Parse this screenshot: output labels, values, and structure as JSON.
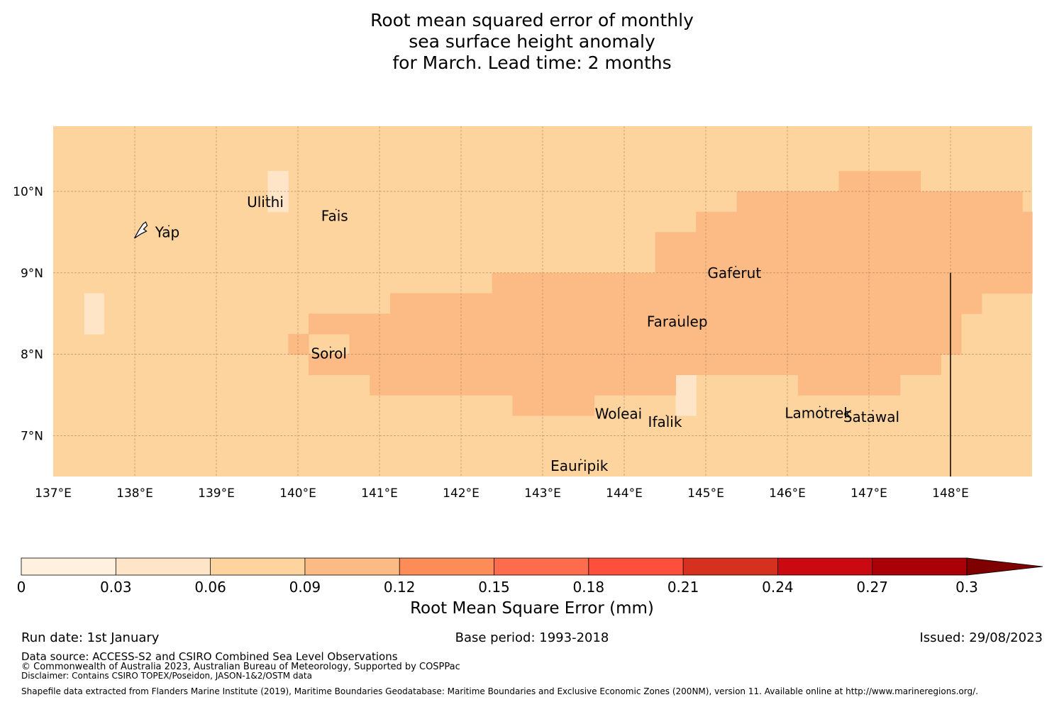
{
  "title": {
    "line1": "Root mean squared error of monthly",
    "line2": "sea surface height anomaly",
    "line3": "for March. Lead time: 2 months"
  },
  "map": {
    "lon_range": [
      137.0,
      149.0
    ],
    "lat_range": [
      6.5,
      10.8
    ],
    "x_ticks": [
      "137°E",
      "138°E",
      "139°E",
      "140°E",
      "141°E",
      "142°E",
      "143°E",
      "144°E",
      "145°E",
      "146°E",
      "147°E",
      "148°E"
    ],
    "y_ticks": [
      "10°N",
      "9°N",
      "8°N",
      "7°N"
    ],
    "background_value": 0.075,
    "error_field": [
      {
        "lon0": 137.38,
        "lon1": 137.62,
        "lat0": 8.25,
        "lat1": 8.75,
        "value": 0.05
      },
      {
        "lon0": 139.63,
        "lon1": 139.88,
        "lat0": 9.75,
        "lat1": 10.25,
        "value": 0.05
      },
      {
        "lon0": 144.63,
        "lon1": 144.88,
        "lat0": 7.25,
        "lat1": 7.75,
        "value": 0.05
      },
      {
        "lon0": 142.38,
        "lon1": 144.38,
        "lat0": 8.75,
        "lat1": 9.0,
        "value": 0.095
      },
      {
        "lon0": 144.38,
        "lon1": 144.88,
        "lat0": 8.75,
        "lat1": 9.5,
        "value": 0.095
      },
      {
        "lon0": 144.88,
        "lon1": 145.38,
        "lat0": 8.75,
        "lat1": 9.75,
        "value": 0.095
      },
      {
        "lon0": 145.38,
        "lon1": 146.63,
        "lat0": 8.75,
        "lat1": 10.0,
        "value": 0.095
      },
      {
        "lon0": 146.63,
        "lon1": 147.63,
        "lat0": 8.75,
        "lat1": 10.25,
        "value": 0.095
      },
      {
        "lon0": 147.63,
        "lon1": 148.88,
        "lat0": 8.75,
        "lat1": 10.0,
        "value": 0.095
      },
      {
        "lon0": 148.88,
        "lon1": 149.0,
        "lat0": 8.75,
        "lat1": 9.75,
        "value": 0.095
      },
      {
        "lon0": 141.13,
        "lon1": 148.38,
        "lat0": 8.5,
        "lat1": 8.75,
        "value": 0.095
      },
      {
        "lon0": 140.63,
        "lon1": 148.13,
        "lat0": 8.0,
        "lat1": 8.5,
        "value": 0.095
      },
      {
        "lon0": 140.13,
        "lon1": 147.88,
        "lat0": 7.75,
        "lat1": 8.0,
        "value": 0.095
      },
      {
        "lon0": 140.13,
        "lon1": 140.63,
        "lat0": 8.25,
        "lat1": 8.5,
        "value": 0.095
      },
      {
        "lon0": 139.88,
        "lon1": 140.13,
        "lat0": 8.0,
        "lat1": 8.25,
        "value": 0.095
      },
      {
        "lon0": 140.88,
        "lon1": 142.63,
        "lat0": 7.5,
        "lat1": 7.75,
        "value": 0.095
      },
      {
        "lon0": 142.63,
        "lon1": 143.63,
        "lat0": 7.25,
        "lat1": 7.75,
        "value": 0.095
      },
      {
        "lon0": 143.63,
        "lon1": 144.63,
        "lat0": 7.5,
        "lat1": 7.75,
        "value": 0.095
      },
      {
        "lon0": 146.13,
        "lon1": 147.38,
        "lat0": 7.5,
        "lat1": 7.75,
        "value": 0.095
      }
    ],
    "boundary_line": {
      "lon": 148.0,
      "lat0": 6.5,
      "lat1": 9.0
    },
    "places": [
      {
        "name": "Yap",
        "lon": 138.4,
        "lat": 9.5
      },
      {
        "name": "Ulithi",
        "lon": 139.6,
        "lat": 9.87
      },
      {
        "name": "Fais",
        "lon": 140.45,
        "lat": 9.7
      },
      {
        "name": "Gaferut",
        "lon": 145.35,
        "lat": 9.0
      },
      {
        "name": "Faraulep",
        "lon": 144.65,
        "lat": 8.4
      },
      {
        "name": "Sorol",
        "lon": 140.38,
        "lat": 8.01
      },
      {
        "name": "Woleai",
        "lon": 143.93,
        "lat": 7.27
      },
      {
        "name": "Ifalik",
        "lon": 144.5,
        "lat": 7.17
      },
      {
        "name": "Lamotrek",
        "lon": 146.38,
        "lat": 7.28
      },
      {
        "name": "Satawal",
        "lon": 147.03,
        "lat": 7.23
      },
      {
        "name": "Eauripik",
        "lon": 143.45,
        "lat": 6.63
      }
    ]
  },
  "colorbar": {
    "ticks": [
      "0",
      "0.03",
      "0.06",
      "0.09",
      "0.12",
      "0.15",
      "0.18",
      "0.21",
      "0.24",
      "0.27",
      "0.3"
    ],
    "colors": [
      "#fff1de",
      "#fee5c8",
      "#fdd49e",
      "#fcbb84",
      "#fc8d59",
      "#fd6c4d",
      "#fe4f3c",
      "#d6301e",
      "#ca0a10",
      "#a90107"
    ],
    "extend_color": "#7f0000",
    "label": "Root Mean Square Error (mm)"
  },
  "footer": {
    "run_date": "Run date: 1st January",
    "base_period": "Base period: 1993-2018",
    "issued": "Issued: 29/08/2023",
    "data_source": "Data source: ACCESS-S2 and CSIRO Combined Sea Level Observations",
    "copyright": "© Commonwealth of Australia 2023, Australian Bureau of Meteorology, Supported by COSPPac",
    "disclaimer": "Disclaimer: Contains CSIRO TOPEX/Poseidon, JASON-1&2/OSTM data",
    "shapefile": "Shapefile data extracted from Flanders Marine Institute (2019), Maritime Boundaries Geodatabase: Maritime Boundaries and Exclusive Economic Zones (200NM), version 11. Available online at http://www.marineregions.org/."
  }
}
